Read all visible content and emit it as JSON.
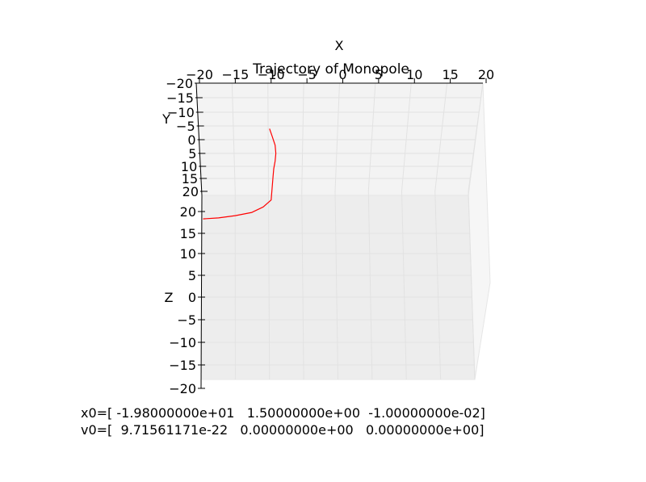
{
  "chart_data": {
    "type": "line",
    "projection": "3d",
    "title": "Trajectory of Monopole",
    "xlabel": "X",
    "ylabel": "Y",
    "zlabel": "Z",
    "xlim": [
      -20,
      20
    ],
    "ylim": [
      -20,
      20
    ],
    "zlim": [
      -20,
      20
    ],
    "x_ticks": [
      "−20",
      "−15",
      "−10",
      "−5",
      "0",
      "5",
      "10",
      "15",
      "20"
    ],
    "y_ticks": [
      "−20",
      "−15",
      "−10",
      "−5",
      "0",
      "5",
      "10",
      "15",
      "20"
    ],
    "z_ticks": [
      "20",
      "15",
      "10",
      "5",
      "0",
      "−5",
      "−10",
      "−15",
      "−20"
    ],
    "grid": true,
    "series": [
      {
        "color": "#ff0000",
        "points": [
          [
            -9.8,
            -4.0,
            20.0
          ],
          [
            -9.4,
            -1.0,
            20.0
          ],
          [
            -9.0,
            2.0,
            20.0
          ],
          [
            -8.9,
            5.0,
            20.0
          ],
          [
            -9.0,
            8.0,
            20.0
          ],
          [
            -9.2,
            11.0,
            20.0
          ],
          [
            -9.3,
            14.0,
            20.0
          ],
          [
            -9.6,
            15.0,
            19.0
          ],
          [
            -10.8,
            15.0,
            17.5
          ],
          [
            -12.5,
            15.0,
            16.3
          ],
          [
            -15.0,
            15.0,
            15.6
          ],
          [
            -17.5,
            15.0,
            15.1
          ],
          [
            -19.8,
            15.0,
            14.9
          ]
        ]
      }
    ]
  },
  "captions": {
    "x0": "x0=[ -1.98000000e+01   1.50000000e+00  -1.00000000e-02]",
    "v0": "v0=[  9.71561171e-22   0.00000000e+00   0.00000000e+00]"
  }
}
